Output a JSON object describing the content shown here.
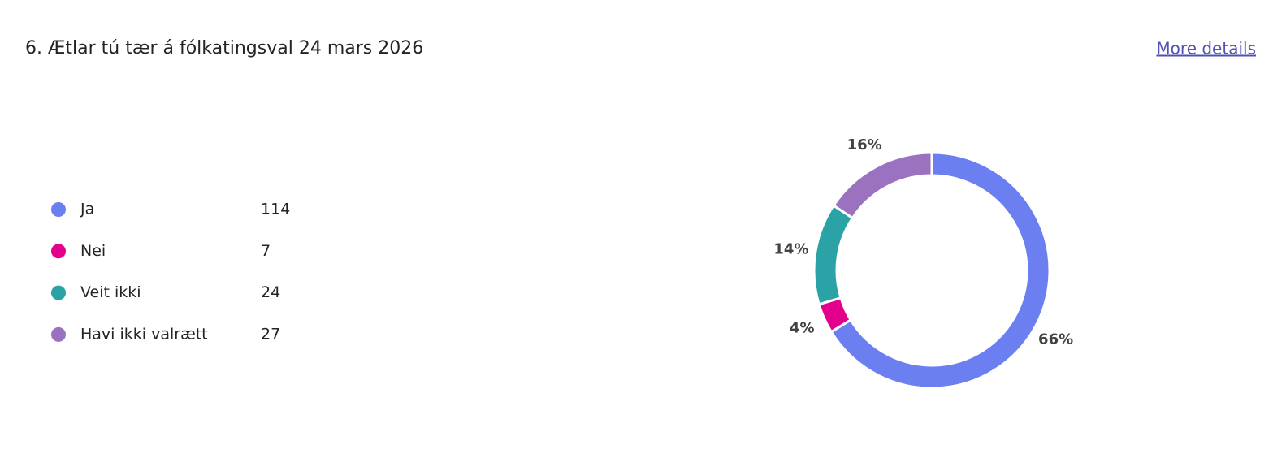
{
  "chart_data": {
    "type": "donut",
    "title": "6. Ætlar tú tær á fólkatingsval 24 mars 2026",
    "link": "More details",
    "categories": [
      "Ja",
      "Nei",
      "Veit ikki",
      "Havi ikki valrætt"
    ],
    "values": [
      114,
      7,
      24,
      27
    ],
    "value_labels": [
      "66%",
      "4%",
      "14%",
      "16%"
    ],
    "colors": [
      "#6b7ff0",
      "#e3008c",
      "#2ba3a6",
      "#9a72c0"
    ]
  }
}
